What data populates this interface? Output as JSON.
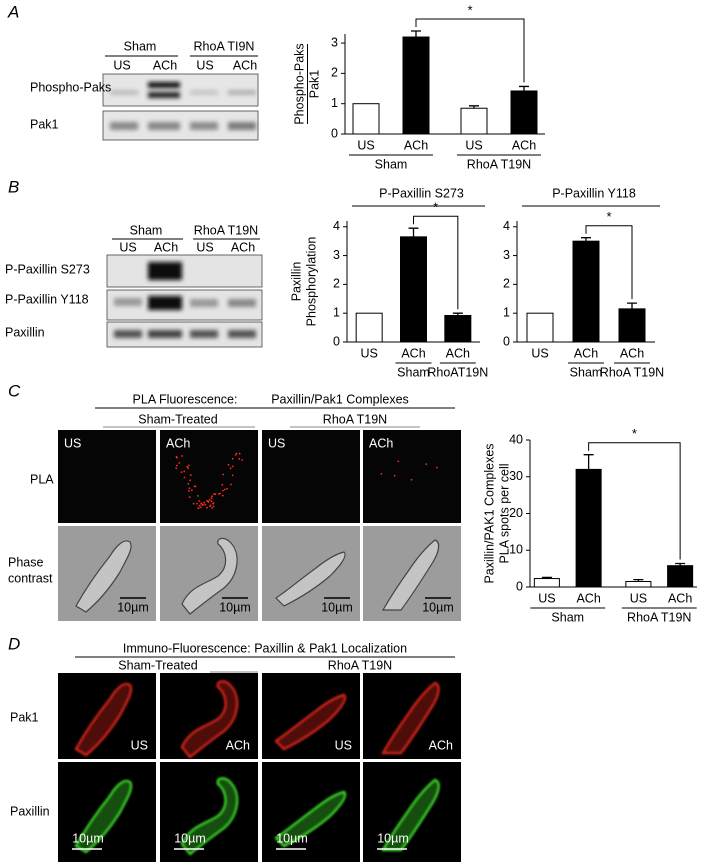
{
  "panels": [
    "A",
    "B",
    "C",
    "D"
  ],
  "blots": {
    "A": {
      "groups": [
        "Sham",
        "RhoA TI9N"
      ],
      "lanes": [
        "US",
        "ACh",
        "US",
        "ACh"
      ],
      "rows": [
        "Phospho-Paks",
        "Pak1"
      ]
    },
    "B": {
      "groups": [
        "Sham",
        "RhoA T19N"
      ],
      "lanes": [
        "US",
        "ACh",
        "US",
        "ACh"
      ],
      "rows": [
        "P-Paxillin S273",
        "P-Paxillin Y118",
        "Paxillin"
      ]
    }
  },
  "imaging": {
    "C": {
      "header": [
        "PLA Fluorescence:",
        "Paxillin/Pak1 Complexes"
      ],
      "groups": [
        "Sham-Treated",
        "RhoA T19N"
      ],
      "columns": [
        "US",
        "ACh",
        "US",
        "ACh"
      ],
      "rows": [
        "PLA",
        [
          "Phase",
          "contrast"
        ]
      ]
    },
    "D": {
      "header": "Immuno-Fluorescence: Paxillin & Pak1 Localization",
      "groups": [
        "Sham-Treated",
        "RhoA T19N"
      ],
      "columns": [
        "US",
        "ACh",
        "US",
        "ACh"
      ],
      "rows": [
        "Pak1",
        "Paxillin"
      ]
    },
    "scale_bar": "10µm"
  },
  "chart_data": [
    {
      "type": "bar",
      "ylabel": [
        "Phospho-Paks",
        "Pak1"
      ],
      "categories": [
        "US",
        "ACh",
        "US",
        "ACh"
      ],
      "groups": [
        "Sham",
        "RhoA T19N"
      ],
      "values": [
        1,
        3.2,
        0.85,
        1.42
      ],
      "errors": [
        null,
        0.2,
        0.08,
        0.15
      ],
      "colors": [
        "#ffffff",
        "#000000",
        "#ffffff",
        "#000000"
      ],
      "ylim": [
        0,
        3.3
      ],
      "yticks": [
        0,
        1,
        2,
        3
      ],
      "significance": {
        "label": "*",
        "between": [
          1,
          3
        ]
      }
    },
    {
      "type": "bar",
      "title": "P-Paxillin S273",
      "ylabel": [
        "Paxillin",
        "Phosphorylation"
      ],
      "categories": [
        "US",
        "ACh",
        "ACh"
      ],
      "sublabels": [
        null,
        "Sham",
        "RhoAT19N"
      ],
      "values": [
        1,
        3.65,
        0.92
      ],
      "errors": [
        null,
        0.3,
        0.08
      ],
      "colors": [
        "#ffffff",
        "#000000",
        "#000000"
      ],
      "ylim": [
        0,
        4.2
      ],
      "yticks": [
        0,
        1,
        2,
        3,
        4
      ],
      "significance": {
        "label": "*",
        "between": [
          1,
          2
        ]
      }
    },
    {
      "type": "bar",
      "title": "P-Paxillin Y118",
      "categories": [
        "US",
        "ACh",
        "ACh"
      ],
      "sublabels": [
        null,
        "Sham",
        "RhoA T19N"
      ],
      "values": [
        1,
        3.5,
        1.15
      ],
      "errors": [
        null,
        0.12,
        0.2
      ],
      "colors": [
        "#ffffff",
        "#000000",
        "#000000"
      ],
      "ylim": [
        0,
        4.2
      ],
      "yticks": [
        0,
        1,
        2,
        3,
        4
      ],
      "significance": {
        "label": "*",
        "between": [
          1,
          2
        ]
      }
    },
    {
      "type": "bar",
      "ylabel": [
        "Paxillin/PAK1 Complexes",
        "PLA spots per cell"
      ],
      "categories": [
        "US",
        "ACh",
        "US",
        "ACh"
      ],
      "groups": [
        "Sham",
        "RhoA T19N"
      ],
      "values": [
        2.3,
        32,
        1.5,
        5.8
      ],
      "errors": [
        0.3,
        4,
        0.5,
        0.6
      ],
      "colors": [
        "#ffffff",
        "#000000",
        "#ffffff",
        "#000000"
      ],
      "ylim": [
        0,
        40
      ],
      "yticks": [
        0,
        10,
        20,
        30,
        40
      ],
      "significance": {
        "label": "*",
        "between": [
          1,
          3
        ]
      }
    }
  ]
}
